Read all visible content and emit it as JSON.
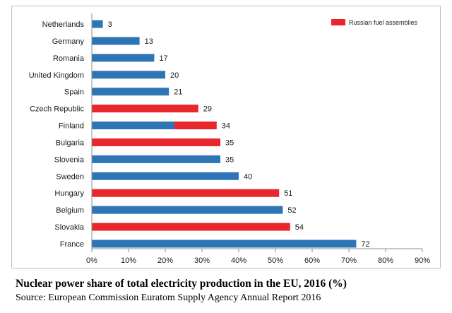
{
  "caption": {
    "title": "Nuclear power share of total electricity production in the EU, 2016 (%)",
    "source": "Source: European Commission Euratom Supply Agency Annual Report 2016"
  },
  "chart_data": {
    "type": "bar",
    "orientation": "horizontal",
    "title": "",
    "xlabel": "",
    "ylabel": "",
    "xlim": [
      0,
      90
    ],
    "x_ticks": [
      0,
      10,
      20,
      30,
      40,
      50,
      60,
      70,
      80,
      90
    ],
    "x_tick_labels": [
      "0%",
      "10%",
      "20%",
      "30%",
      "40%",
      "50%",
      "60%",
      "70%",
      "80%",
      "90%"
    ],
    "grid": false,
    "legend": {
      "placement": "top-right",
      "entries": [
        {
          "label": "Russian fuel assemblies",
          "color": "#e8262b"
        }
      ]
    },
    "colors": {
      "default": "#2e75b6",
      "russian": "#e8262b"
    },
    "categories": [
      "Netherlands",
      "Germany",
      "Romania",
      "United Kingdom",
      "Spain",
      "Czech Republic",
      "Finland",
      "Bulgaria",
      "Slovenia",
      "Sweden",
      "Hungary",
      "Belgium",
      "Slovakia",
      "France"
    ],
    "values": [
      3,
      13,
      17,
      20,
      21,
      29,
      34,
      35,
      35,
      40,
      51,
      52,
      54,
      72
    ],
    "value_labels": [
      "3",
      "13",
      "17",
      "20",
      "21",
      "29",
      "34",
      "35",
      "35",
      "40",
      "51",
      "52",
      "54",
      "72"
    ],
    "segments": [
      [
        {
          "value": 3,
          "color": "#2e75b6"
        }
      ],
      [
        {
          "value": 13,
          "color": "#2e75b6"
        }
      ],
      [
        {
          "value": 17,
          "color": "#2e75b6"
        }
      ],
      [
        {
          "value": 20,
          "color": "#2e75b6"
        }
      ],
      [
        {
          "value": 21,
          "color": "#2e75b6"
        }
      ],
      [
        {
          "value": 29,
          "color": "#e8262b"
        }
      ],
      [
        {
          "value": 22.5,
          "color": "#2e75b6"
        },
        {
          "value": 11.5,
          "color": "#e8262b"
        }
      ],
      [
        {
          "value": 35,
          "color": "#e8262b"
        }
      ],
      [
        {
          "value": 35,
          "color": "#2e75b6"
        }
      ],
      [
        {
          "value": 40,
          "color": "#2e75b6"
        }
      ],
      [
        {
          "value": 51,
          "color": "#e8262b"
        }
      ],
      [
        {
          "value": 52,
          "color": "#2e75b6"
        }
      ],
      [
        {
          "value": 54,
          "color": "#e8262b"
        }
      ],
      [
        {
          "value": 72,
          "color": "#2e75b6"
        }
      ]
    ]
  }
}
